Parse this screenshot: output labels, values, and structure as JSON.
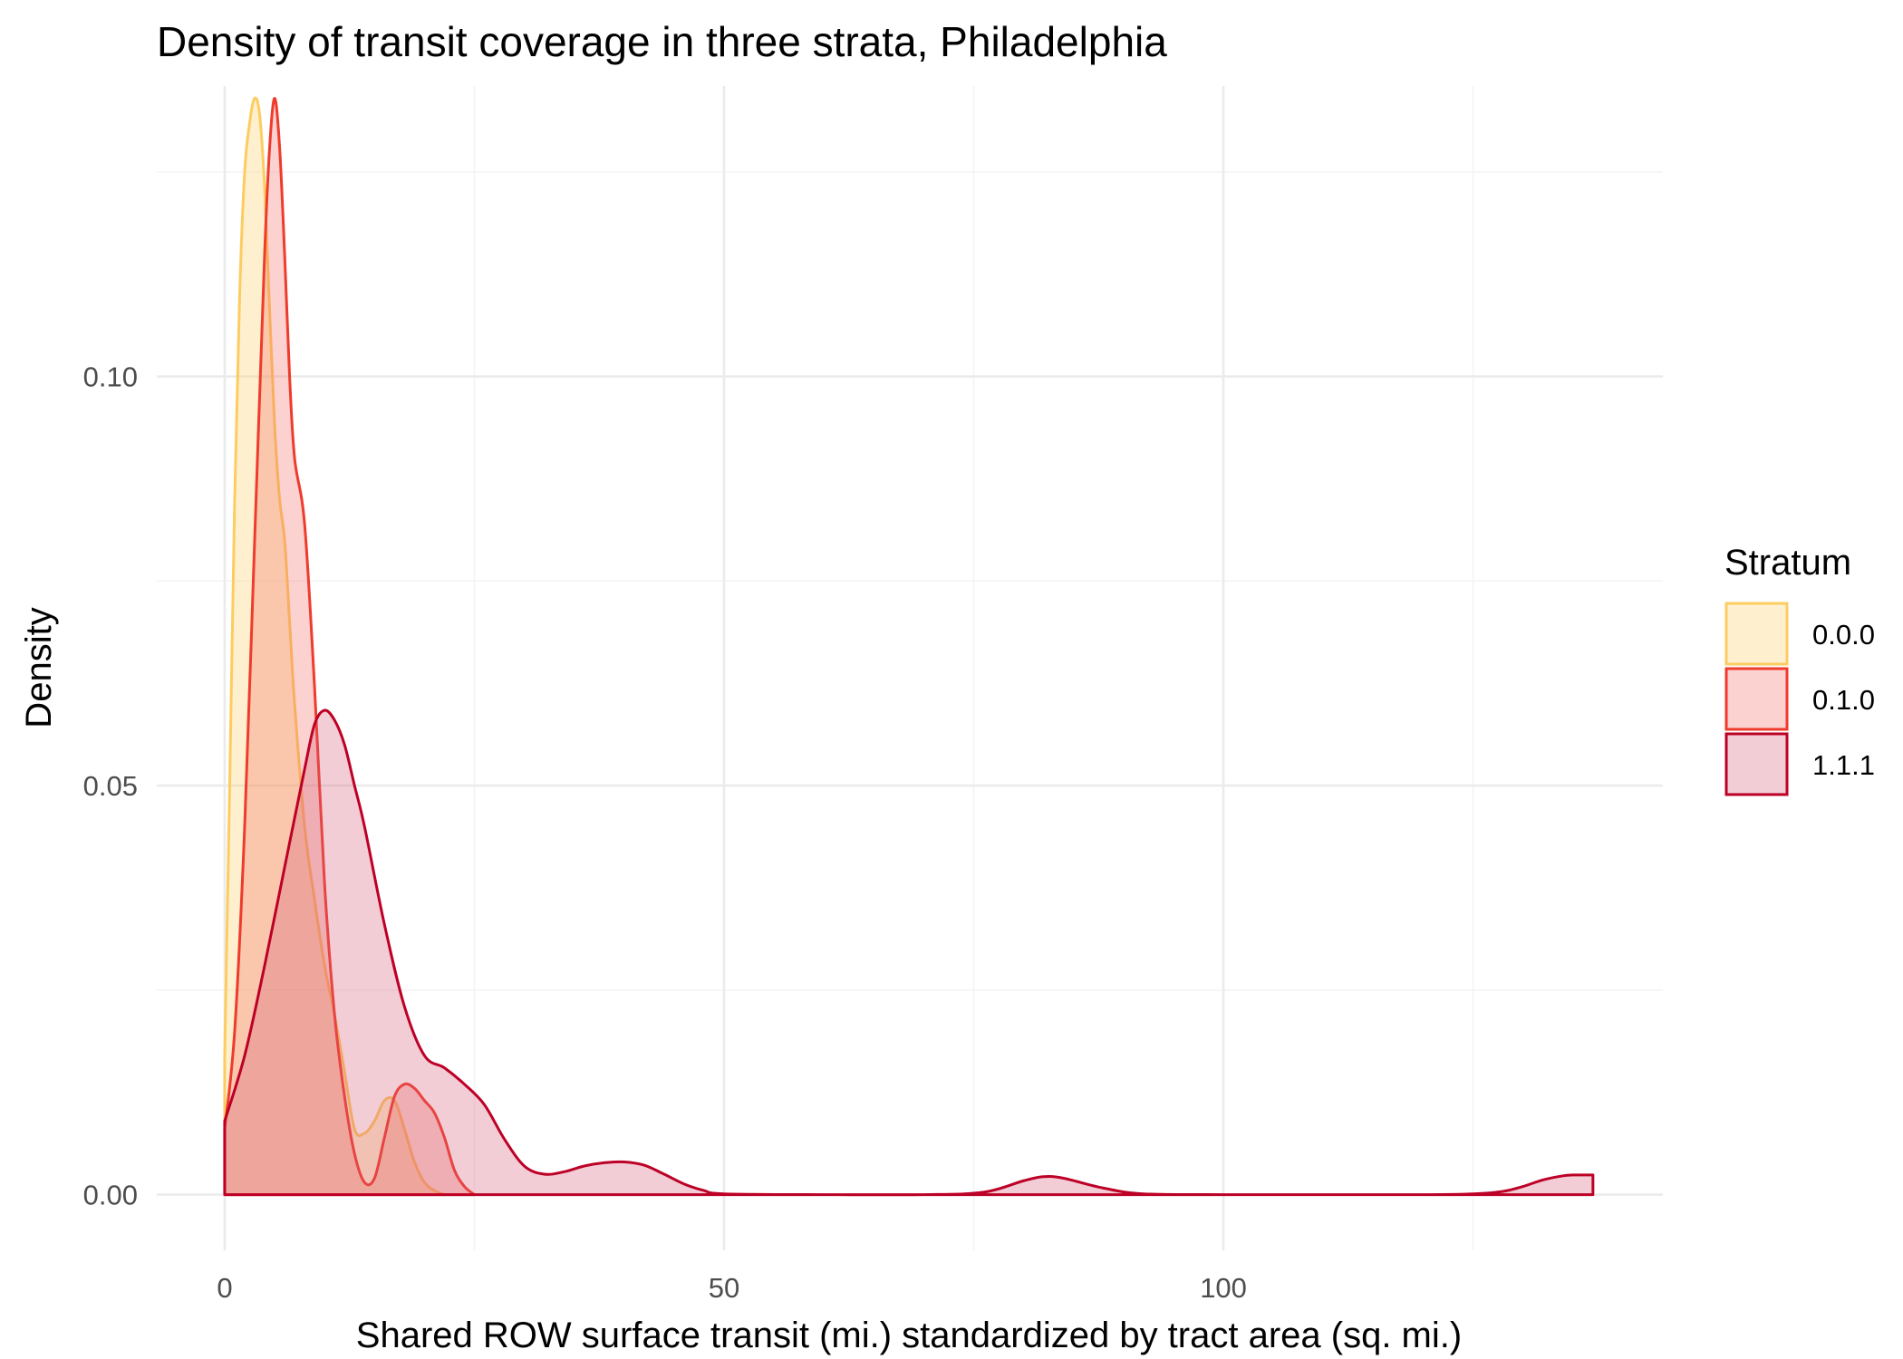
{
  "chart_data": {
    "type": "area",
    "subtype": "density",
    "title": "Density of transit coverage in three strata, Philadelphia",
    "xlabel": "Shared ROW surface transit (mi.) standardized by tract area (sq. mi.)",
    "ylabel": "Density",
    "xlim": [
      -6.8,
      144
    ],
    "ylim": [
      -0.0068,
      0.1355
    ],
    "x_ticks": [
      0,
      50,
      100
    ],
    "x_tick_labels": [
      "0",
      "50",
      "100"
    ],
    "x_minor": [
      25,
      75,
      125
    ],
    "y_ticks": [
      0.0,
      0.05,
      0.1
    ],
    "y_tick_labels": [
      "0.00",
      "0.05",
      "0.10"
    ],
    "y_minor": [
      0.025,
      0.075,
      0.125
    ],
    "grid": true,
    "legend": {
      "title": "Stratum",
      "position": "right"
    },
    "series": [
      {
        "name": "0.0.0",
        "color": "#fdcc60",
        "fill": "#fdcc60",
        "x": [
          0,
          0.5,
          1,
          1.5,
          2,
          2.5,
          3,
          3.5,
          4,
          4.5,
          5,
          5.5,
          6,
          6.5,
          7,
          8,
          9,
          10,
          11,
          12,
          13,
          14,
          15,
          16,
          17,
          18,
          19,
          20,
          21,
          22
        ],
        "y": [
          0.017,
          0.05,
          0.085,
          0.11,
          0.125,
          0.131,
          0.134,
          0.132,
          0.123,
          0.108,
          0.094,
          0.085,
          0.08,
          0.07,
          0.06,
          0.045,
          0.036,
          0.028,
          0.022,
          0.015,
          0.008,
          0.0075,
          0.009,
          0.0115,
          0.0115,
          0.008,
          0.004,
          0.0015,
          0.0005,
          0.0
        ]
      },
      {
        "name": "0.1.0",
        "color": "#ef3b2c",
        "fill": "#f36b5f",
        "x": [
          0,
          1,
          2,
          3,
          4,
          4.5,
          5,
          5.5,
          6,
          6.5,
          7,
          8,
          9,
          10,
          11,
          12,
          13,
          14,
          15,
          16,
          17,
          18,
          19,
          20,
          21,
          22,
          23,
          24,
          25
        ],
        "y": [
          0.008,
          0.02,
          0.045,
          0.08,
          0.115,
          0.128,
          0.134,
          0.128,
          0.115,
          0.1,
          0.09,
          0.082,
          0.062,
          0.038,
          0.022,
          0.012,
          0.005,
          0.0015,
          0.002,
          0.007,
          0.012,
          0.0135,
          0.013,
          0.0115,
          0.01,
          0.007,
          0.003,
          0.001,
          0.0
        ]
      },
      {
        "name": "1.1.1",
        "color": "#bd0026",
        "fill": "#d55a78",
        "x": [
          0,
          2,
          4,
          6,
          8,
          9,
          10,
          11,
          12,
          13,
          14,
          16,
          18,
          20,
          22,
          24,
          26,
          28,
          30,
          32,
          34,
          36,
          38,
          40,
          42,
          44,
          46,
          48,
          50,
          60,
          70,
          76,
          80,
          82,
          84,
          88,
          92,
          100,
          110,
          120,
          125,
          128,
          130,
          132,
          134,
          135,
          137
        ],
        "y": [
          0.009,
          0.017,
          0.028,
          0.04,
          0.052,
          0.0575,
          0.0592,
          0.058,
          0.055,
          0.05,
          0.045,
          0.033,
          0.023,
          0.017,
          0.0155,
          0.0135,
          0.011,
          0.0068,
          0.0035,
          0.0025,
          0.0028,
          0.0035,
          0.0039,
          0.004,
          0.0036,
          0.0025,
          0.0013,
          0.0005,
          0.0001,
          0.0,
          0.0,
          0.0003,
          0.0017,
          0.0022,
          0.002,
          0.0008,
          0.0001,
          0.0,
          0.0,
          0.0,
          0.0001,
          0.0004,
          0.001,
          0.0018,
          0.0023,
          0.0024,
          0.0024
        ]
      }
    ]
  }
}
